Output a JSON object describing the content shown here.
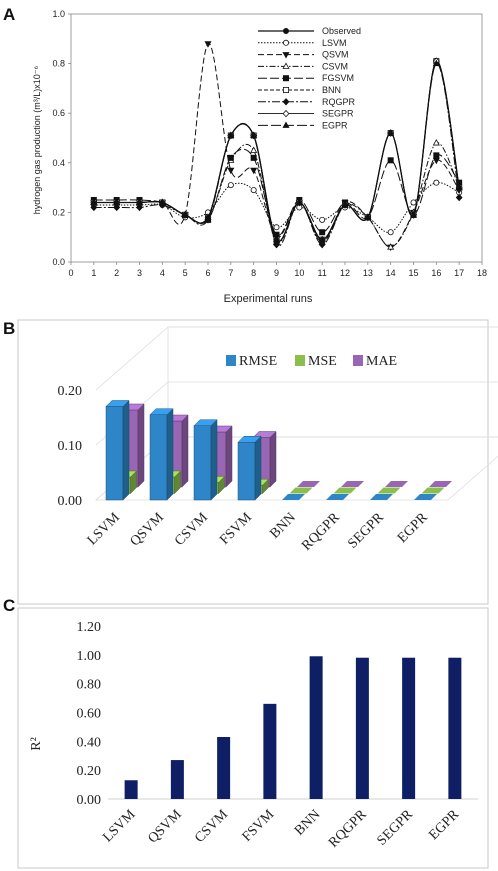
{
  "panel_labels": {
    "a": "A",
    "b": "B",
    "c": "C"
  },
  "colors": {
    "rmse": "#2e86c8",
    "mse": "#8bbf4b",
    "mae": "#9966b3",
    "r2": "#0f1f66"
  },
  "chart_data": [
    {
      "type": "line",
      "xlabel": "Experimental runs",
      "ylabel": "hydrogen gas production (m³/L)x10⁻⁶",
      "xlim": [
        0,
        18
      ],
      "ylim": [
        0,
        1
      ],
      "xticks": [
        "0",
        "1",
        "2",
        "3",
        "4",
        "5",
        "6",
        "7",
        "8",
        "9",
        "10",
        "11",
        "12",
        "13",
        "14",
        "15",
        "16",
        "17",
        "18"
      ],
      "yticks": [
        "0.0",
        "0.2",
        "0.4",
        "0.6",
        "0.8",
        "1.0"
      ],
      "x": [
        1,
        2,
        3,
        4,
        5,
        6,
        7,
        8,
        9,
        10,
        11,
        12,
        13,
        14,
        15,
        16,
        17
      ],
      "legend": "top-right",
      "series": [
        {
          "name": "Observed",
          "values": [
            0.24,
            0.24,
            0.24,
            0.24,
            0.19,
            0.18,
            0.51,
            0.51,
            0.09,
            0.24,
            0.09,
            0.23,
            0.18,
            0.52,
            0.19,
            0.81,
            0.3
          ]
        },
        {
          "name": "LSVM",
          "values": [
            0.23,
            0.23,
            0.23,
            0.23,
            0.18,
            0.2,
            0.31,
            0.29,
            0.14,
            0.22,
            0.17,
            0.22,
            0.18,
            0.12,
            0.24,
            0.32,
            0.28
          ]
        },
        {
          "name": "QSVM",
          "values": [
            0.24,
            0.24,
            0.24,
            0.24,
            0.19,
            0.88,
            0.37,
            0.37,
            0.1,
            0.24,
            0.08,
            0.24,
            0.18,
            0.06,
            0.2,
            0.41,
            0.29
          ]
        },
        {
          "name": "CSVM",
          "values": [
            0.24,
            0.24,
            0.24,
            0.24,
            0.19,
            0.17,
            0.41,
            0.45,
            0.08,
            0.24,
            0.08,
            0.23,
            0.18,
            0.06,
            0.2,
            0.48,
            0.3
          ]
        },
        {
          "name": "FGSVM",
          "values": [
            0.25,
            0.25,
            0.25,
            0.24,
            0.19,
            0.17,
            0.42,
            0.42,
            0.11,
            0.25,
            0.12,
            0.24,
            0.18,
            0.41,
            0.19,
            0.43,
            0.32
          ]
        },
        {
          "name": "BNN",
          "values": [
            0.24,
            0.24,
            0.24,
            0.24,
            0.19,
            0.18,
            0.51,
            0.51,
            0.09,
            0.24,
            0.09,
            0.23,
            0.18,
            0.52,
            0.19,
            0.81,
            0.3
          ]
        },
        {
          "name": "RQGPR",
          "values": [
            0.22,
            0.22,
            0.22,
            0.23,
            0.19,
            0.17,
            0.51,
            0.51,
            0.07,
            0.24,
            0.07,
            0.23,
            0.18,
            0.52,
            0.19,
            0.81,
            0.26
          ]
        },
        {
          "name": "SEGPR",
          "values": [
            0.24,
            0.24,
            0.24,
            0.24,
            0.19,
            0.18,
            0.51,
            0.51,
            0.09,
            0.24,
            0.09,
            0.23,
            0.18,
            0.52,
            0.19,
            0.81,
            0.3
          ]
        },
        {
          "name": "EGPR",
          "values": [
            0.24,
            0.24,
            0.24,
            0.24,
            0.19,
            0.18,
            0.51,
            0.51,
            0.09,
            0.24,
            0.09,
            0.23,
            0.18,
            0.52,
            0.19,
            0.8,
            0.3
          ]
        }
      ]
    },
    {
      "type": "bar",
      "categories": [
        "LSVM",
        "QSVM",
        "CSVM",
        "FSVM",
        "BNN",
        "RQGPR",
        "SEGPR",
        "EGPR"
      ],
      "ylim": [
        0,
        0.2
      ],
      "yticks": [
        "0.00",
        "0.10",
        "0.20"
      ],
      "legend": "top",
      "series": [
        {
          "name": "RMSE",
          "values": [
            0.17,
            0.155,
            0.135,
            0.105,
            0.0,
            0.0,
            0.0,
            0.0
          ]
        },
        {
          "name": "MSE",
          "values": [
            0.03,
            0.03,
            0.02,
            0.015,
            0.0,
            0.0,
            0.0,
            0.0
          ]
        },
        {
          "name": "MAE",
          "values": [
            0.14,
            0.12,
            0.1,
            0.09,
            0.0,
            0.0,
            0.0,
            0.0
          ]
        }
      ]
    },
    {
      "type": "bar",
      "categories": [
        "LSVM",
        "QSVM",
        "CSVM",
        "FSVM",
        "BNN",
        "RQGPR",
        "SEGPR",
        "EGPR"
      ],
      "ylabel": "R²",
      "ylim": [
        0,
        1.2
      ],
      "yticks": [
        "0.00",
        "0.20",
        "0.40",
        "0.60",
        "0.80",
        "1.00",
        "1.20"
      ],
      "values": [
        0.13,
        0.27,
        0.43,
        0.66,
        0.99,
        0.98,
        0.98,
        0.98
      ]
    }
  ]
}
